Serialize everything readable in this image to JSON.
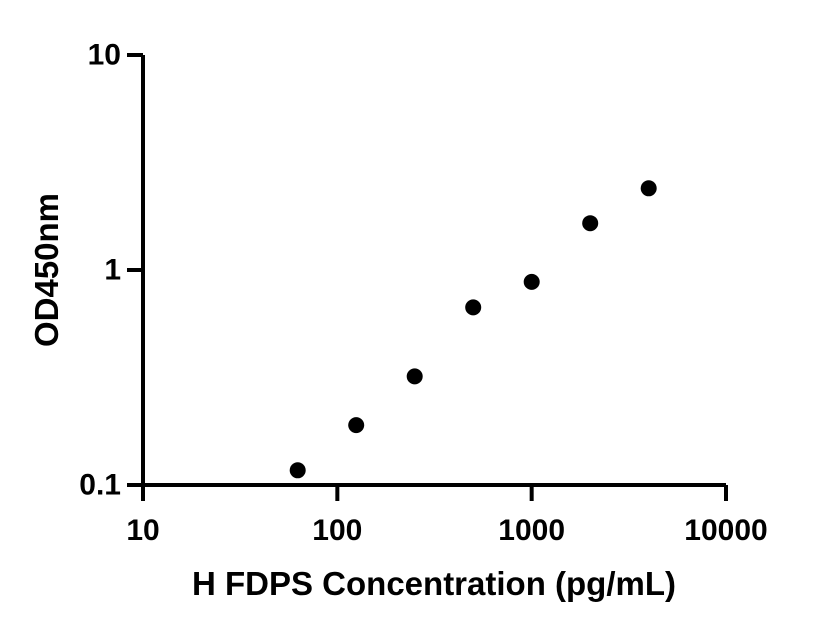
{
  "figure": {
    "background": "#ffffff",
    "ink_color": "#000000"
  },
  "chart_data": {
    "type": "scatter",
    "title": "",
    "xlabel": "H FDPS Concentration (pg/mL)",
    "ylabel": "OD450nm",
    "x_scale": "log10",
    "y_scale": "log10",
    "xlim": [
      10,
      10000
    ],
    "ylim": [
      0.1,
      10
    ],
    "grid": false,
    "legend": false,
    "x_ticks": {
      "values": [
        10,
        100,
        1000,
        10000
      ],
      "labels": [
        "10",
        "100",
        "1000",
        "10000"
      ]
    },
    "y_ticks": {
      "values": [
        10,
        1,
        0.1
      ],
      "labels": [
        "10",
        "1",
        "0.1"
      ]
    },
    "points": {
      "x": [
        62.5,
        125,
        250,
        500,
        1000,
        2000,
        4000
      ],
      "y": [
        0.117,
        0.19,
        0.32,
        0.67,
        0.88,
        1.65,
        2.4
      ]
    },
    "marker": {
      "shape": "filled-circle",
      "color": "#000000",
      "radius_px": 8
    },
    "line": {
      "type": "smooth-fit-curve",
      "color": "#000000"
    }
  }
}
